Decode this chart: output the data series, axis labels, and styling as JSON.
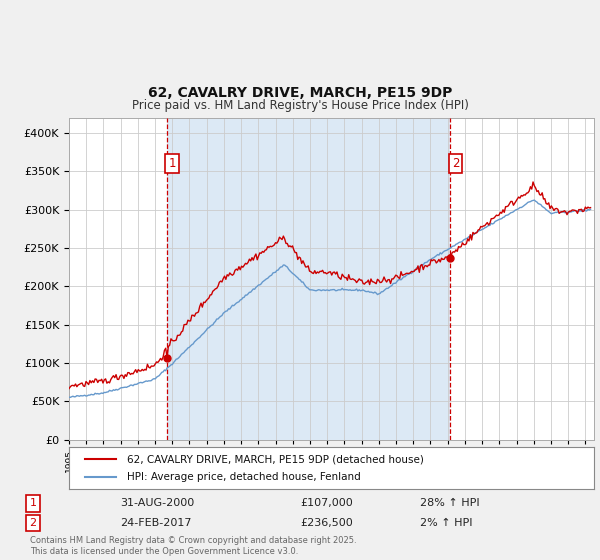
{
  "title": "62, CAVALRY DRIVE, MARCH, PE15 9DP",
  "subtitle": "Price paid vs. HM Land Registry's House Price Index (HPI)",
  "legend_label_red": "62, CAVALRY DRIVE, MARCH, PE15 9DP (detached house)",
  "legend_label_blue": "HPI: Average price, detached house, Fenland",
  "annotation1_label": "1",
  "annotation1_date": "31-AUG-2000",
  "annotation1_price": "£107,000",
  "annotation1_hpi": "28% ↑ HPI",
  "annotation2_label": "2",
  "annotation2_date": "24-FEB-2017",
  "annotation2_price": "£236,500",
  "annotation2_hpi": "2% ↑ HPI",
  "footer": "Contains HM Land Registry data © Crown copyright and database right 2025.\nThis data is licensed under the Open Government Licence v3.0.",
  "red_color": "#cc0000",
  "blue_color": "#6699cc",
  "ownership_bg_color": "#dce9f5",
  "background_color": "#f0f0f0",
  "plot_bg_color": "#ffffff",
  "grid_color": "#cccccc",
  "ylim": [
    0,
    420000
  ],
  "yticks": [
    0,
    50000,
    100000,
    150000,
    200000,
    250000,
    300000,
    350000,
    400000
  ],
  "vline1_x": 2000.67,
  "vline2_x": 2017.14,
  "sale1_x": 2000.67,
  "sale1_y": 107000,
  "sale2_x": 2017.14,
  "sale2_y": 236500,
  "xlim_start": 1995,
  "xlim_end": 2025.5
}
